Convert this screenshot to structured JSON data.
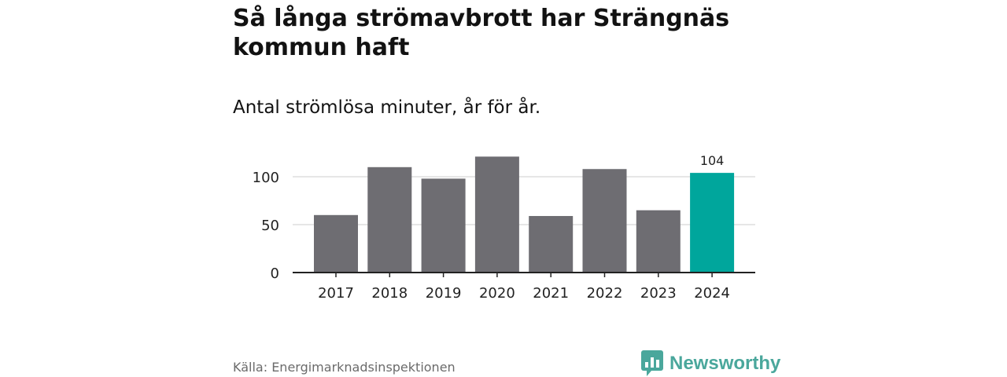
{
  "title": "Så långa strömavbrott har Strängnäs kommun haft",
  "subtitle": "Antal strömlösa minuter, år för år.",
  "source": "Källa: Energimarknadsinspektionen",
  "brand": {
    "name": "Newsworthy",
    "icon": "newsworthy-logo-icon",
    "color": "#4aa79c"
  },
  "colors": {
    "bar": "#6e6d72",
    "highlight": "#00a69c",
    "grid": "#dddddd",
    "axis": "#222222"
  },
  "chart_data": {
    "type": "bar",
    "title": "Så långa strömavbrott har Strängnäs kommun haft",
    "subtitle": "Antal strömlösa minuter, år för år.",
    "xlabel": "",
    "ylabel": "",
    "categories": [
      "2017",
      "2018",
      "2019",
      "2020",
      "2021",
      "2022",
      "2023",
      "2024"
    ],
    "values": [
      60,
      110,
      98,
      121,
      59,
      108,
      65,
      104
    ],
    "highlight_index": 7,
    "highlight_label": "104",
    "yticks": [
      "0",
      "50",
      "100"
    ],
    "ytick_values": [
      0,
      50,
      100
    ],
    "ylim": [
      0,
      125
    ],
    "grid": true
  }
}
